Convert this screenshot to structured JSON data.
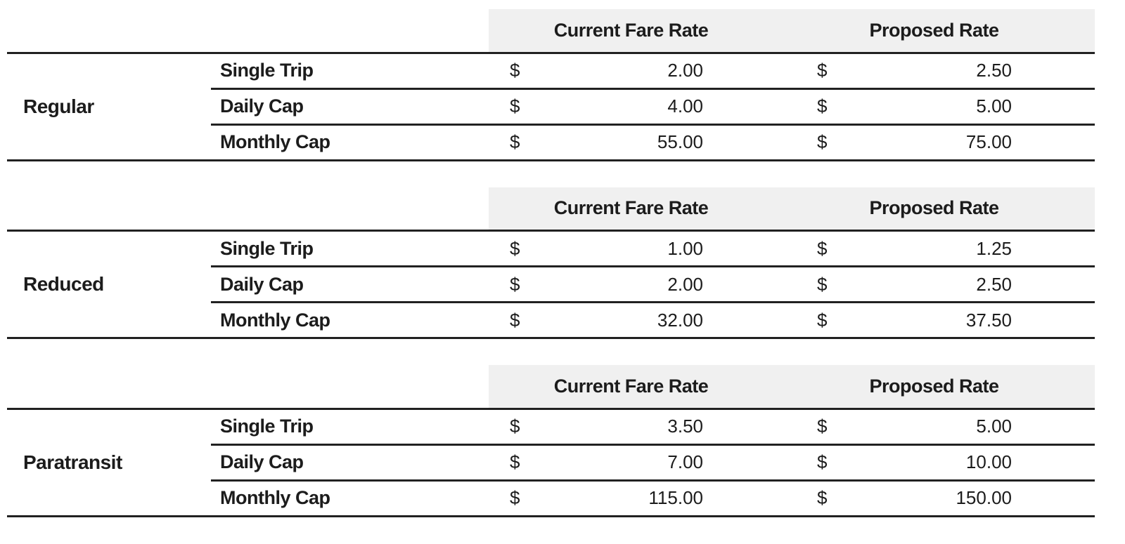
{
  "styles": {
    "header_bg": "#f0f0f0",
    "line_color": "#212121",
    "text_color": "#1c1c1c",
    "page_bg": "#ffffff"
  },
  "currency_symbol": "$",
  "column_headers": {
    "current": "Current Fare Rate",
    "proposed": "Proposed Rate"
  },
  "tables": [
    {
      "category": "Regular",
      "rows": [
        {
          "label": "Single Trip",
          "current": "2.00",
          "proposed": "2.50"
        },
        {
          "label": "Daily Cap",
          "current": "4.00",
          "proposed": "5.00"
        },
        {
          "label": "Monthly Cap",
          "current": "55.00",
          "proposed": "75.00"
        }
      ]
    },
    {
      "category": "Reduced",
      "rows": [
        {
          "label": "Single Trip",
          "current": "1.00",
          "proposed": "1.25"
        },
        {
          "label": "Daily Cap",
          "current": "2.00",
          "proposed": "2.50"
        },
        {
          "label": "Monthly Cap",
          "current": "32.00",
          "proposed": "37.50"
        }
      ]
    },
    {
      "category": "Paratransit",
      "rows": [
        {
          "label": "Single Trip",
          "current": "3.50",
          "proposed": "5.00"
        },
        {
          "label": "Daily Cap",
          "current": "7.00",
          "proposed": "10.00"
        },
        {
          "label": "Monthly Cap",
          "current": "115.00",
          "proposed": "150.00"
        }
      ]
    }
  ]
}
